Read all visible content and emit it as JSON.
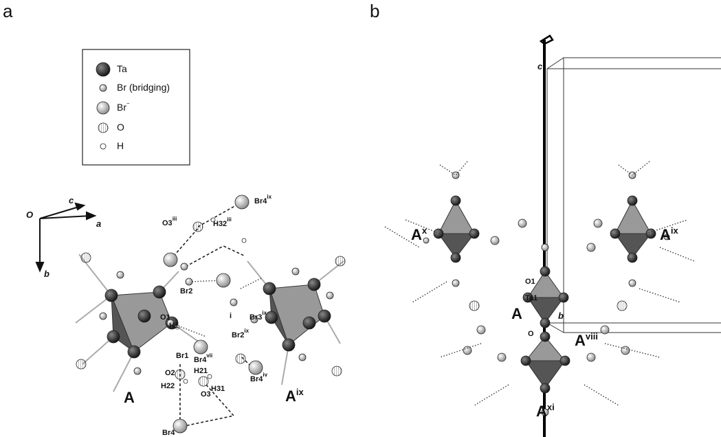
{
  "panel_a": {
    "label": "a",
    "legend": [
      {
        "text": "Ta"
      },
      {
        "text": "Br (bridging)"
      },
      {
        "text": "Br",
        "sup": "−"
      },
      {
        "text": "O"
      },
      {
        "text": "H"
      }
    ],
    "axes": [
      {
        "text": "O"
      },
      {
        "text": "c"
      },
      {
        "text": "a"
      },
      {
        "text": "b"
      }
    ],
    "labels": [
      {
        "text": "O3",
        "sup": "iii"
      },
      {
        "text": "H32",
        "sup": "iii"
      },
      {
        "text": "Br4",
        "sup": "ix"
      },
      {
        "text": "Br2"
      },
      {
        "text": "i"
      },
      {
        "text": "Br3",
        "sup": "ix"
      },
      {
        "text": "O1"
      },
      {
        "text": "H1"
      },
      {
        "text": "Br2",
        "sup": "ix"
      },
      {
        "text": "Br1"
      },
      {
        "text": "Br4",
        "sup": "vii"
      },
      {
        "text": "H21"
      },
      {
        "text": "O2"
      },
      {
        "text": "Br4",
        "sup": "iv"
      },
      {
        "text": "H22"
      },
      {
        "text": "O3"
      },
      {
        "text": "H31"
      },
      {
        "text": "Br4"
      },
      {
        "text": "A"
      },
      {
        "text": "A",
        "sup": "ix"
      }
    ]
  },
  "panel_b": {
    "label": "b",
    "labels": [
      {
        "text": "c"
      },
      {
        "text": "A",
        "sup": "x"
      },
      {
        "text": "A",
        "sup": "ix"
      },
      {
        "text": "O1"
      },
      {
        "text": "Ta1"
      },
      {
        "text": "A"
      },
      {
        "text": "b"
      },
      {
        "text": "O"
      },
      {
        "text": "A",
        "sup": "viii"
      },
      {
        "text": "A",
        "sup": "xi"
      }
    ]
  }
}
